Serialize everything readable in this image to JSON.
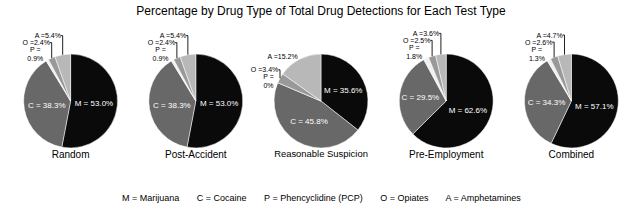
{
  "title": "Percentage by Drug Type of Total Drug Detections for Each Test Type",
  "annotations": [
    "M = Marijuana       C = Cocaine       P = Phencyclidine (PCP)       O = Opiates       A = Amphetamines"
  ],
  "chart_data": [
    {
      "type": "pie",
      "title": "Random",
      "categories": [
        "M",
        "C",
        "P",
        "O",
        "A"
      ],
      "values": [
        53.0,
        38.3,
        0.9,
        2.4,
        5.4
      ],
      "value_labels": [
        "M = 53.0%",
        "C = 38.3%",
        "P =\n0.9%",
        "O =2.4%",
        "A =5.4%"
      ],
      "colors": [
        "#0a0a0a",
        "#686868",
        "#f0f0f0",
        "#999999",
        "#b8b8b8"
      ],
      "data_labels": true
    },
    {
      "type": "pie",
      "title": "Post-Accident",
      "categories": [
        "M",
        "C",
        "P",
        "O",
        "A"
      ],
      "values": [
        53.0,
        38.3,
        0.9,
        2.4,
        5.4
      ],
      "value_labels": [
        "M = 53.0%",
        "C = 38.3%",
        "P =\n0.9%",
        "O =2.4%",
        "A =5.4%"
      ],
      "colors": [
        "#0a0a0a",
        "#686868",
        "#f0f0f0",
        "#999999",
        "#b8b8b8"
      ],
      "data_labels": true
    },
    {
      "type": "pie",
      "title": "Reasonable Suspicion",
      "categories": [
        "M",
        "C",
        "P",
        "O",
        "A"
      ],
      "values": [
        35.6,
        45.8,
        0.0,
        3.4,
        15.2
      ],
      "value_labels": [
        "M = 35.6%",
        "C = 45.8%",
        "P =\n0%",
        "O =3.4%",
        "A =15.2%"
      ],
      "colors": [
        "#0a0a0a",
        "#686868",
        "#f0f0f0",
        "#999999",
        "#b8b8b8"
      ],
      "data_labels": true
    },
    {
      "type": "pie",
      "title": "Pre-Employment",
      "categories": [
        "M",
        "C",
        "P",
        "O",
        "A"
      ],
      "values": [
        62.6,
        29.5,
        1.8,
        2.5,
        3.6
      ],
      "value_labels": [
        "M = 62.6%",
        "C = 29.5%",
        "P =\n1.8%",
        "O =2.5%",
        "A =3.6%"
      ],
      "colors": [
        "#0a0a0a",
        "#686868",
        "#f0f0f0",
        "#999999",
        "#b8b8b8"
      ],
      "data_labels": true
    },
    {
      "type": "pie",
      "title": "Combined",
      "categories": [
        "M",
        "C",
        "P",
        "O",
        "A"
      ],
      "values": [
        57.1,
        34.3,
        1.3,
        2.6,
        4.7
      ],
      "value_labels": [
        "M = 57.1%",
        "C = 34.3%",
        "P =\n1.3%",
        "O =2.6%",
        "A =4.7%"
      ],
      "colors": [
        "#0a0a0a",
        "#686868",
        "#f0f0f0",
        "#999999",
        "#b8b8b8"
      ],
      "data_labels": true
    }
  ]
}
